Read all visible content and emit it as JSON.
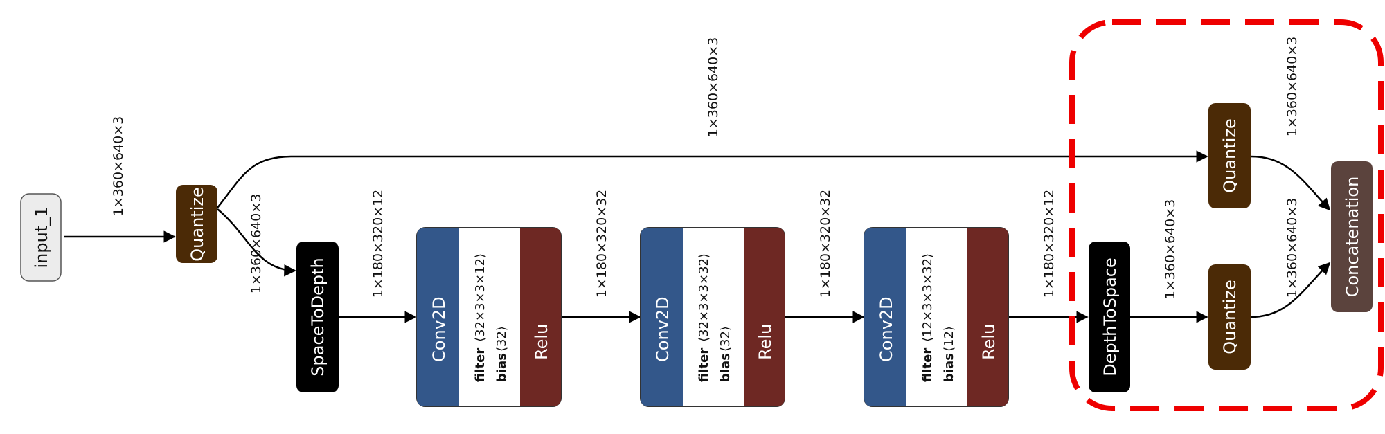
{
  "colors": {
    "quantize": "#4b2a06",
    "black_node": "#000000",
    "conv_blue": "#33578a",
    "relu_red": "#6e2823",
    "concat": "#5b433d",
    "input": "#ececec",
    "highlight": "#ee0000"
  },
  "nodes": {
    "input_1": "input_1",
    "quantize_main": "Quantize",
    "space_to_depth": "SpaceToDepth",
    "conv1": {
      "op": "Conv2D",
      "filter_key": "filter",
      "filter_val": "⟨32×3×3×12⟩",
      "bias_key": "bias",
      "bias_val": "⟨32⟩",
      "act": "Relu"
    },
    "conv2": {
      "op": "Conv2D",
      "filter_key": "filter",
      "filter_val": "⟨32×3×3×32⟩",
      "bias_key": "bias",
      "bias_val": "⟨32⟩",
      "act": "Relu"
    },
    "conv3": {
      "op": "Conv2D",
      "filter_key": "filter",
      "filter_val": "⟨12×3×3×32⟩",
      "bias_key": "bias",
      "bias_val": "⟨12⟩",
      "act": "Relu"
    },
    "depth_to_space": "DepthToSpace",
    "quantize_top": "Quantize",
    "quantize_bottom": "Quantize",
    "concatenation": "Concatenation"
  },
  "edges": {
    "input_to_quantize": "1×360×640×3",
    "quantize_to_s2d": "1×360×640×3",
    "skip": "1×360×640×3",
    "s2d_to_conv1": "1×180×320×12",
    "conv1_to_conv2": "1×180×320×32",
    "conv2_to_conv3": "1×180×320×32",
    "conv3_to_d2s": "1×180×320×12",
    "d2s_to_quantize": "1×360×640×3",
    "qtop_to_concat": "1×360×640×3",
    "qbottom_to_concat": "1×360×640×3"
  }
}
